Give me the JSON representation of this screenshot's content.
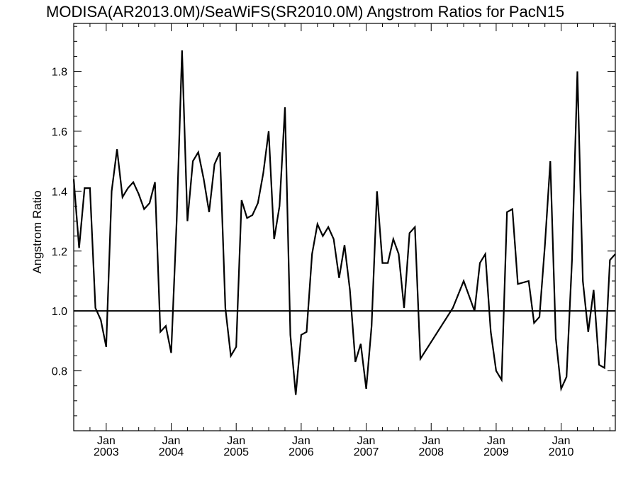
{
  "chart_data": {
    "type": "line",
    "title": "MODISA(AR2013.0M)/SeaWiFS(SR2010.0M)  Angstrom Ratios for PacN15",
    "xlabel": "",
    "ylabel": "Angstrom Ratio",
    "ylim": [
      0.6,
      1.96
    ],
    "y_ticks": [
      0.8,
      1.0,
      1.2,
      1.4,
      1.6,
      1.8
    ],
    "y_tick_labels": [
      "0.8",
      "1.0",
      "1.2",
      "1.4",
      "1.6",
      "1.8"
    ],
    "xlim": [
      "2002-07-01",
      "2010-11-01"
    ],
    "x_ticks": [
      "2003-01-01",
      "2004-01-01",
      "2005-01-01",
      "2006-01-01",
      "2007-01-01",
      "2008-01-01",
      "2009-01-01",
      "2010-01-01"
    ],
    "x_tick_labels_month": [
      "Jan",
      "Jan",
      "Jan",
      "Jan",
      "Jan",
      "Jan",
      "Jan",
      "Jan"
    ],
    "x_tick_labels_year": [
      "2003",
      "2004",
      "2005",
      "2006",
      "2007",
      "2008",
      "2009",
      "2010"
    ],
    "reference_line": 1.0,
    "grid": false,
    "line_color": "#000000",
    "x": [
      "2002-07",
      "2002-08",
      "2002-09",
      "2002-10",
      "2002-11",
      "2002-12",
      "2003-01",
      "2003-02",
      "2003-03",
      "2003-04",
      "2003-05",
      "2003-06",
      "2003-07",
      "2003-08",
      "2003-09",
      "2003-10",
      "2003-11",
      "2003-12",
      "2004-01",
      "2004-02",
      "2004-03",
      "2004-04",
      "2004-05",
      "2004-06",
      "2004-07",
      "2004-08",
      "2004-09",
      "2004-10",
      "2004-11",
      "2004-12",
      "2005-01",
      "2005-02",
      "2005-03",
      "2005-04",
      "2005-05",
      "2005-06",
      "2005-07",
      "2005-08",
      "2005-09",
      "2005-10",
      "2005-11",
      "2005-12",
      "2006-01",
      "2006-02",
      "2006-03",
      "2006-04",
      "2006-05",
      "2006-06",
      "2006-07",
      "2006-08",
      "2006-09",
      "2006-10",
      "2006-11",
      "2006-12",
      "2007-01",
      "2007-02",
      "2007-03",
      "2007-04",
      "2007-05",
      "2007-06",
      "2007-07",
      "2007-08",
      "2007-09",
      "2007-10",
      "2007-11",
      "2008-05",
      "2008-07",
      "2008-09",
      "2008-10",
      "2008-11",
      "2008-12",
      "2009-01",
      "2009-02",
      "2009-03",
      "2009-04",
      "2009-05",
      "2009-07",
      "2009-08",
      "2009-09",
      "2009-10",
      "2009-11",
      "2009-12",
      "2010-01",
      "2010-02",
      "2010-03",
      "2010-04",
      "2010-05",
      "2010-06",
      "2010-07",
      "2010-08",
      "2010-09",
      "2010-10",
      "2010-11"
    ],
    "values": [
      1.44,
      1.21,
      1.41,
      1.41,
      1.01,
      0.97,
      0.88,
      1.4,
      1.54,
      1.38,
      1.41,
      1.43,
      1.39,
      1.34,
      1.36,
      1.43,
      0.93,
      0.95,
      0.86,
      1.3,
      1.87,
      1.3,
      1.5,
      1.53,
      1.44,
      1.33,
      1.49,
      1.53,
      1.01,
      0.85,
      0.88,
      1.37,
      1.31,
      1.32,
      1.36,
      1.46,
      1.6,
      1.24,
      1.35,
      1.68,
      0.92,
      0.72,
      0.92,
      0.93,
      1.19,
      1.29,
      1.25,
      1.28,
      1.24,
      1.11,
      1.22,
      1.07,
      0.83,
      0.89,
      0.74,
      0.95,
      1.4,
      1.16,
      1.16,
      1.24,
      1.19,
      1.01,
      1.26,
      1.28,
      0.84,
      1.01,
      1.1,
      1.0,
      1.16,
      1.19,
      0.93,
      0.8,
      0.77,
      1.33,
      1.34,
      1.09,
      1.1,
      0.96,
      0.98,
      1.22,
      1.5,
      0.91,
      0.74,
      0.78,
      1.17,
      1.8,
      1.1,
      0.93,
      1.07,
      0.82,
      0.81,
      1.17,
      1.19
    ]
  }
}
